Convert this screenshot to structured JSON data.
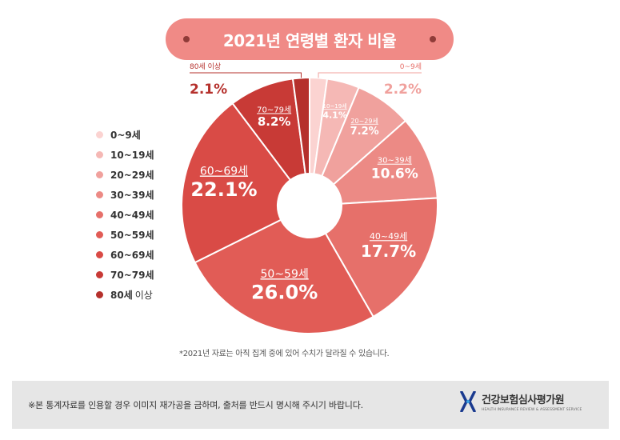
{
  "title": "2021년 연령별 환자 비율",
  "chart_data": {
    "type": "pie",
    "title": "2021년 연령별 환자 비율",
    "unit": "%",
    "slices": [
      {
        "label": "0~9세",
        "value": 2.2,
        "color": "#fbd3d1"
      },
      {
        "label": "10~19세",
        "value": 4.1,
        "color": "#f5b8b5"
      },
      {
        "label": "20~29세",
        "value": 7.2,
        "color": "#f0a19d"
      },
      {
        "label": "30~39세",
        "value": 10.6,
        "color": "#ec8a85"
      },
      {
        "label": "40~49세",
        "value": 17.7,
        "color": "#e6706a"
      },
      {
        "label": "50~59세",
        "value": 26.0,
        "color": "#e15c56"
      },
      {
        "label": "60~69세",
        "value": 22.1,
        "color": "#d94b46"
      },
      {
        "label": "70~79세",
        "value": 8.2,
        "color": "#c83a36"
      },
      {
        "label": "80세 이상",
        "value": 2.1,
        "color": "#b5302c"
      }
    ],
    "value_labels": [
      "2.2%",
      "4.1%",
      "7.2%",
      "10.6%",
      "17.7%",
      "26.0%",
      "22.1%",
      "8.2%",
      "2.1%"
    ]
  },
  "legend": [
    {
      "main": "0~9세",
      "extra": "",
      "color": "#fbd3d1"
    },
    {
      "main": "10~19세",
      "extra": "",
      "color": "#f5b8b5"
    },
    {
      "main": "20~29세",
      "extra": "",
      "color": "#f0a19d"
    },
    {
      "main": "30~39세",
      "extra": "",
      "color": "#ec8a85"
    },
    {
      "main": "40~49세",
      "extra": "",
      "color": "#e6706a"
    },
    {
      "main": "50~59세",
      "extra": "",
      "color": "#e15c56"
    },
    {
      "main": "60~69세",
      "extra": "",
      "color": "#d94b46"
    },
    {
      "main": "70~79세",
      "extra": "",
      "color": "#c83a36"
    },
    {
      "main": "80세",
      "extra": "이상",
      "color": "#b5302c"
    }
  ],
  "footnote": "*2021년 자료는 아직 집계 중에 있어 수치가 달라질 수 있습니다.",
  "footer": {
    "notice": "※본 통계자료를 인용할 경우 이미지 재가공을 금하며, 출처를 반드시 명시해 주시기 바랍니다.",
    "org_name": "건강보험심사평가원",
    "org_sub": "HEALTH INSURANCE REVIEW & ASSESSMENT SERVICE"
  },
  "colors": {
    "title_bg": "#f08a86",
    "accent_dark": "#8f3b38",
    "footer_bg": "#e6e6e6",
    "logo_blue": "#1a3a8f"
  }
}
